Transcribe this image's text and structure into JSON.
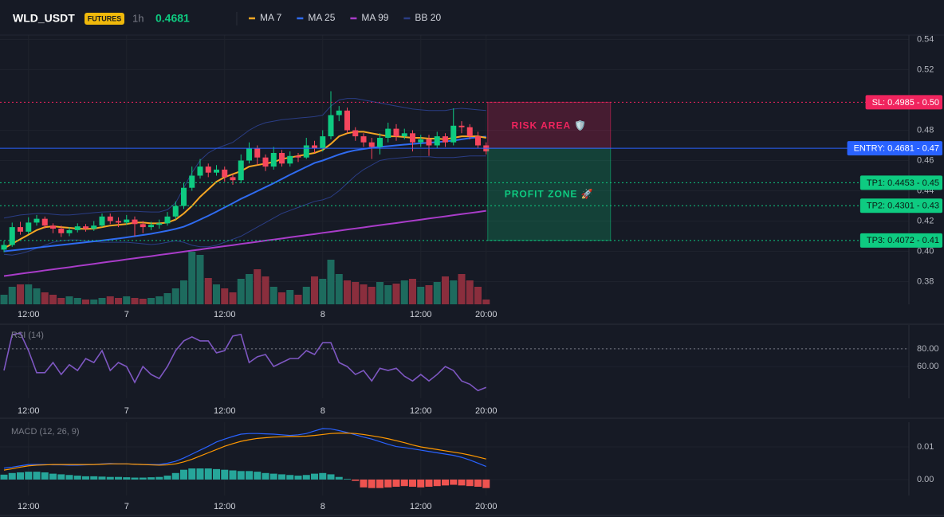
{
  "header": {
    "symbol": "WLD_USDT",
    "market": "FUTURES",
    "interval": "1h",
    "price": 0.4681
  },
  "chart_data": [
    {
      "type": "candlestick",
      "categories": [
        null,
        null,
        null,
        "12:00",
        null,
        null,
        null,
        null,
        null,
        null,
        null,
        null,
        null,
        null,
        null,
        "7",
        null,
        null,
        null,
        null,
        null,
        null,
        null,
        null,
        null,
        null,
        null,
        "12:00",
        null,
        null,
        null,
        null,
        null,
        null,
        null,
        null,
        null,
        null,
        null,
        "8",
        null,
        null,
        null,
        null,
        null,
        null,
        null,
        null,
        null,
        null,
        null,
        "12:00",
        null,
        null,
        null,
        null,
        null,
        null,
        null,
        "20:00"
      ],
      "open": [
        0.4011,
        0.4042,
        0.416,
        0.413,
        0.419,
        0.4215,
        0.417,
        0.415,
        0.412,
        0.414,
        0.4165,
        0.415,
        0.417,
        0.423,
        0.42,
        0.419,
        0.421,
        0.418,
        0.416,
        0.4175,
        0.4185,
        0.423,
        0.43,
        0.442,
        0.45,
        0.456,
        0.452,
        0.454,
        0.449,
        0.447,
        0.46,
        0.468,
        0.462,
        0.456,
        0.465,
        0.458,
        0.463,
        0.462,
        0.47,
        0.468,
        0.476,
        0.49,
        0.493,
        0.48,
        0.476,
        0.472,
        0.469,
        0.475,
        0.481,
        0.476,
        0.478,
        0.472,
        0.474,
        0.47,
        0.476,
        0.472,
        0.483,
        0.482,
        0.476,
        0.47
      ],
      "close": [
        0.4042,
        0.416,
        0.413,
        0.419,
        0.4215,
        0.417,
        0.415,
        0.412,
        0.414,
        0.4165,
        0.415,
        0.417,
        0.423,
        0.42,
        0.419,
        0.421,
        0.418,
        0.416,
        0.4175,
        0.4185,
        0.423,
        0.43,
        0.442,
        0.45,
        0.456,
        0.452,
        0.454,
        0.449,
        0.447,
        0.46,
        0.468,
        0.462,
        0.456,
        0.465,
        0.458,
        0.463,
        0.462,
        0.47,
        0.468,
        0.476,
        0.49,
        0.493,
        0.48,
        0.476,
        0.472,
        0.469,
        0.475,
        0.481,
        0.476,
        0.478,
        0.472,
        0.474,
        0.47,
        0.476,
        0.472,
        0.483,
        0.482,
        0.476,
        0.47,
        0.466
      ],
      "high": [
        0.407,
        0.419,
        0.4195,
        0.4225,
        0.424,
        0.423,
        0.4185,
        0.417,
        0.416,
        0.4185,
        0.418,
        0.42,
        0.425,
        0.425,
        0.4225,
        0.424,
        0.423,
        0.42,
        0.4195,
        0.421,
        0.426,
        0.433,
        0.445,
        0.456,
        0.461,
        0.458,
        0.457,
        0.456,
        0.451,
        0.464,
        0.472,
        0.47,
        0.464,
        0.469,
        0.467,
        0.466,
        0.465,
        0.475,
        0.473,
        0.48,
        0.5058,
        0.496,
        0.495,
        0.482,
        0.478,
        0.475,
        0.478,
        0.485,
        0.484,
        0.481,
        0.48,
        0.477,
        0.477,
        0.479,
        0.478,
        0.4945,
        0.486,
        0.484,
        0.479,
        0.472
      ],
      "low": [
        0.3995,
        0.403,
        0.411,
        0.4115,
        0.417,
        0.415,
        0.412,
        0.4095,
        0.41,
        0.4125,
        0.413,
        0.4135,
        0.416,
        0.418,
        0.416,
        0.4175,
        0.41,
        0.412,
        0.414,
        0.415,
        0.417,
        0.421,
        0.428,
        0.44,
        0.448,
        0.449,
        0.45,
        0.446,
        0.444,
        0.445,
        0.458,
        0.457,
        0.453,
        0.454,
        0.456,
        0.456,
        0.459,
        0.461,
        0.465,
        0.466,
        0.474,
        0.486,
        0.478,
        0.473,
        0.469,
        0.461,
        0.464,
        0.472,
        0.473,
        0.474,
        0.466,
        0.469,
        0.463,
        0.468,
        0.469,
        0.47,
        0.478,
        0.474,
        0.468,
        0.464
      ],
      "up_color": "#0ecb81",
      "down_color": "#f6465d",
      "volume": [
        12,
        22,
        25,
        25,
        20,
        15,
        12,
        8,
        10,
        8,
        6,
        6,
        8,
        10,
        8,
        10,
        8,
        7,
        8,
        10,
        14,
        20,
        30,
        66,
        62,
        33,
        25,
        20,
        15,
        32,
        38,
        44,
        35,
        22,
        15,
        18,
        12,
        22,
        35,
        32,
        56,
        38,
        30,
        28,
        25,
        22,
        28,
        24,
        26,
        30,
        32,
        22,
        24,
        28,
        35,
        30,
        38,
        30,
        22,
        6
      ],
      "volume_up_color": "#1d6b5e",
      "volume_down_color": "#8a2e3d",
      "series": [
        {
          "name": "MA 7",
          "color": "#f5a623",
          "values": [
            0.402,
            0.405,
            0.408,
            0.411,
            0.414,
            0.416,
            0.4165,
            0.416,
            0.4155,
            0.415,
            0.4148,
            0.415,
            0.416,
            0.417,
            0.4175,
            0.418,
            0.419,
            0.419,
            0.4185,
            0.4185,
            0.419,
            0.421,
            0.425,
            0.43,
            0.436,
            0.441,
            0.446,
            0.449,
            0.451,
            0.453,
            0.456,
            0.457,
            0.458,
            0.459,
            0.461,
            0.462,
            0.463,
            0.464,
            0.465,
            0.467,
            0.471,
            0.476,
            0.478,
            0.479,
            0.479,
            0.478,
            0.477,
            0.476,
            0.476,
            0.4755,
            0.475,
            0.475,
            0.4745,
            0.4745,
            0.474,
            0.475,
            0.476,
            0.476,
            0.476,
            0.475
          ]
        },
        {
          "name": "MA 25",
          "color": "#2f6bf0",
          "values": [
            0.4,
            0.4006,
            0.4012,
            0.4018,
            0.4024,
            0.403,
            0.4036,
            0.4042,
            0.4048,
            0.4054,
            0.406,
            0.4066,
            0.4072,
            0.4078,
            0.4085,
            0.4092,
            0.41,
            0.4108,
            0.4116,
            0.4126,
            0.4136,
            0.4148,
            0.4163,
            0.4185,
            0.421,
            0.4235,
            0.4262,
            0.429,
            0.4318,
            0.4347,
            0.4372,
            0.4398,
            0.4424,
            0.445,
            0.4478,
            0.4506,
            0.4532,
            0.4558,
            0.4584,
            0.46,
            0.462,
            0.464,
            0.4656,
            0.4668,
            0.4676,
            0.4684,
            0.469,
            0.4695,
            0.47,
            0.4705,
            0.471,
            0.4714,
            0.4718,
            0.4722,
            0.4726,
            0.4732,
            0.474,
            0.4748,
            0.4754,
            0.4758
          ]
        },
        {
          "name": "MA 99",
          "color": "#a93cc9",
          "values": [
            0.3837,
            0.3844,
            0.3852,
            0.3859,
            0.3866,
            0.3874,
            0.3881,
            0.3888,
            0.3895,
            0.3903,
            0.391,
            0.3917,
            0.3925,
            0.3932,
            0.3939,
            0.3947,
            0.3954,
            0.3961,
            0.3968,
            0.3976,
            0.3983,
            0.399,
            0.3998,
            0.4005,
            0.4012,
            0.402,
            0.4027,
            0.4034,
            0.4041,
            0.4049,
            0.4056,
            0.4063,
            0.4071,
            0.4078,
            0.4085,
            0.4093,
            0.41,
            0.4107,
            0.4114,
            0.4122,
            0.4129,
            0.4136,
            0.4144,
            0.4151,
            0.4158,
            0.4166,
            0.4173,
            0.418,
            0.4187,
            0.4195,
            0.4202,
            0.4209,
            0.4217,
            0.4224,
            0.4231,
            0.4239,
            0.4246,
            0.4253,
            0.426,
            0.4268
          ]
        }
      ],
      "bands": {
        "name": "BB 20",
        "color": "#2a3d85",
        "upper": [
          0.422,
          0.423,
          0.424,
          0.4245,
          0.425,
          0.425,
          0.4245,
          0.424,
          0.424,
          0.4245,
          0.425,
          0.4255,
          0.426,
          0.4262,
          0.4265,
          0.4265,
          0.4265,
          0.4262,
          0.426,
          0.426,
          0.4275,
          0.432,
          0.442,
          0.452,
          0.46,
          0.465,
          0.468,
          0.47,
          0.472,
          0.476,
          0.48,
          0.483,
          0.485,
          0.486,
          0.487,
          0.4875,
          0.488,
          0.4885,
          0.489,
          0.49,
          0.496,
          0.5,
          0.501,
          0.501,
          0.5,
          0.499,
          0.498,
          0.497,
          0.496,
          0.495,
          0.494,
          0.4935,
          0.493,
          0.493,
          0.493,
          0.494,
          0.4945,
          0.494,
          0.4935,
          0.493
        ],
        "lower": [
          0.398,
          0.3975,
          0.3985,
          0.4,
          0.402,
          0.404,
          0.406,
          0.407,
          0.4075,
          0.4075,
          0.407,
          0.4065,
          0.406,
          0.406,
          0.406,
          0.406,
          0.4055,
          0.405,
          0.4045,
          0.405,
          0.406,
          0.407,
          0.406,
          0.404,
          0.403,
          0.403,
          0.404,
          0.406,
          0.408,
          0.41,
          0.413,
          0.416,
          0.419,
          0.422,
          0.425,
          0.427,
          0.429,
          0.431,
          0.433,
          0.434,
          0.436,
          0.44,
          0.445,
          0.45,
          0.454,
          0.457,
          0.46,
          0.461,
          0.4615,
          0.462,
          0.4625,
          0.4625,
          0.4625,
          0.462,
          0.462,
          0.462,
          0.4625,
          0.463,
          0.463,
          0.463
        ]
      },
      "levels": [
        {
          "label": "SL: 0.4985 - 0.50",
          "value": 0.4985,
          "color": "#f0245e",
          "text_color": "#ffffff",
          "style": "dotted"
        },
        {
          "label": "ENTRY: 0.4681 - 0.47",
          "value": 0.4681,
          "color": "#2962ff",
          "text_color": "#ffffff",
          "style": "solid"
        },
        {
          "label": "TP1: 0.4453 - 0.45",
          "value": 0.4453,
          "color": "#0ecb81",
          "text_color": "#0b1a14",
          "style": "dotted"
        },
        {
          "label": "TP2: 0.4301 - 0.43",
          "value": 0.4301,
          "color": "#0ecb81",
          "text_color": "#0b1a14",
          "style": "dotted"
        },
        {
          "label": "TP3: 0.4072 - 0.41",
          "value": 0.4072,
          "color": "#0ecb81",
          "text_color": "#0b1a14",
          "style": "dotted"
        }
      ],
      "zones": [
        {
          "label": "RISK AREA 🛡️",
          "from": 0.4985,
          "to": 0.4681,
          "color": "#f0245e"
        },
        {
          "label": "PROFIT ZONE 🚀",
          "from": 0.4681,
          "to": 0.4072,
          "color": "#0ecb81"
        }
      ],
      "ylim": [
        0.365,
        0.545
      ],
      "yticks": [
        0.38,
        {
          "value": 0.4,
          "label": "0.40"
        },
        0.42,
        0.44,
        0.46,
        0.48,
        0.52,
        0.54
      ],
      "grid": true
    },
    {
      "type": "line",
      "title": "RSI (14)",
      "color": "#7e57c2",
      "values": [
        55.5,
        96,
        98,
        78,
        53,
        53,
        64.5,
        51,
        62,
        55.5,
        69,
        64.5,
        78,
        55.5,
        64.5,
        60,
        42,
        60,
        51,
        46.4,
        60,
        78,
        89,
        93.6,
        89,
        89,
        75.5,
        78,
        94.5,
        96.4,
        64.5,
        71,
        73.6,
        60,
        64.5,
        69,
        69,
        78,
        73.6,
        87,
        87,
        64.5,
        60,
        51,
        55.5,
        43.6,
        58,
        55.5,
        58,
        49,
        43.6,
        51,
        43.6,
        51,
        60,
        55.5,
        43.6,
        40,
        32.7,
        36.4
      ],
      "levels": [
        80
      ],
      "ylim": [
        24,
        107
      ],
      "yticks": [
        {
          "value": 60,
          "label": "60.00"
        },
        {
          "value": 80,
          "label": "80.00"
        }
      ]
    },
    {
      "type": "macd",
      "title": "MACD (12, 26, 9)",
      "series": [
        {
          "color": "#2962ff",
          "values": [
            0.0035,
            0.0038,
            0.0042,
            0.0046,
            0.0046,
            0.0046,
            0.0045,
            0.0045,
            0.0044,
            0.0044,
            0.0045,
            0.0046,
            0.0048,
            0.0049,
            0.0048,
            0.0048,
            0.0047,
            0.0046,
            0.0046,
            0.0046,
            0.005,
            0.0056,
            0.0066,
            0.0078,
            0.009,
            0.0102,
            0.0115,
            0.0124,
            0.0132,
            0.0139,
            0.0141,
            0.0141,
            0.014,
            0.0139,
            0.0137,
            0.0135,
            0.0137,
            0.0141,
            0.0149,
            0.0156,
            0.0155,
            0.015,
            0.0144,
            0.0137,
            0.013,
            0.0124,
            0.0116,
            0.0108,
            0.0101,
            0.0098,
            0.0094,
            0.009,
            0.0086,
            0.0082,
            0.0078,
            0.0074,
            0.0068,
            0.006,
            0.005,
            0.004
          ]
        },
        {
          "color": "#ff9800",
          "values": [
            0.0029,
            0.0033,
            0.0038,
            0.0042,
            0.0044,
            0.0045,
            0.0046,
            0.0046,
            0.0046,
            0.0046,
            0.0046,
            0.0046,
            0.0047,
            0.0048,
            0.0048,
            0.0048,
            0.0047,
            0.0046,
            0.0045,
            0.0044,
            0.0045,
            0.0048,
            0.0054,
            0.0062,
            0.0072,
            0.0082,
            0.0092,
            0.0102,
            0.011,
            0.0117,
            0.0122,
            0.0126,
            0.0128,
            0.013,
            0.0131,
            0.0132,
            0.0132,
            0.0133,
            0.0135,
            0.0138,
            0.0141,
            0.0142,
            0.0142,
            0.0141,
            0.0138,
            0.0134,
            0.013,
            0.0125,
            0.0119,
            0.0113,
            0.0106,
            0.01,
            0.0096,
            0.0092,
            0.0088,
            0.0084,
            0.008,
            0.0075,
            0.0069,
            0.0063
          ]
        }
      ],
      "histogram": {
        "up_color": "#26a69a",
        "down_color": "#ef5350",
        "values": [
          0.0015,
          0.002,
          0.0022,
          0.0024,
          0.0024,
          0.0022,
          0.0018,
          0.0016,
          0.0014,
          0.0012,
          0.001,
          0.001,
          0.0009,
          0.0008,
          0.0008,
          0.0007,
          0.0006,
          0.0006,
          0.0007,
          0.0008,
          0.0012,
          0.002,
          0.003,
          0.0034,
          0.0034,
          0.0034,
          0.0032,
          0.003,
          0.0028,
          0.0026,
          0.0026,
          0.0024,
          0.002,
          0.0018,
          0.0016,
          0.0014,
          0.0012,
          0.0014,
          0.0018,
          0.002,
          0.0016,
          0.0008,
          0.0002,
          -0.0004,
          -0.0024,
          -0.0026,
          -0.0026,
          -0.0024,
          -0.0022,
          -0.002,
          -0.0022,
          -0.0024,
          -0.0022,
          -0.002,
          -0.0018,
          -0.0016,
          -0.0018,
          -0.002,
          -0.0022,
          -0.0026
        ]
      },
      "ylim": [
        -0.00488,
        0.01756
      ],
      "yticks": [
        0.01,
        {
          "value": 0,
          "label": "0.00"
        }
      ]
    }
  ]
}
